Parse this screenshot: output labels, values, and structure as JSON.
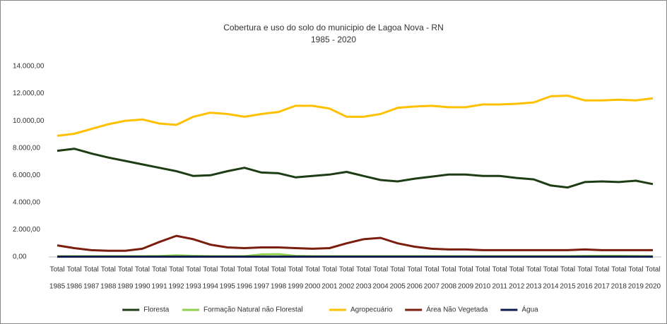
{
  "chart_data": {
    "type": "line",
    "title": "Cobertura e uso do solo do municipio de Lagoa Nova - RN",
    "subtitle": "1985 - 2020",
    "categories": [
      [
        "Total",
        "1985"
      ],
      [
        "Total",
        "1986"
      ],
      [
        "Total",
        "1987"
      ],
      [
        "Total",
        "1988"
      ],
      [
        "Total",
        "1989"
      ],
      [
        "Total",
        "1990"
      ],
      [
        "Total",
        "1991"
      ],
      [
        "Total",
        "1992"
      ],
      [
        "Total",
        "1993"
      ],
      [
        "Total",
        "1994"
      ],
      [
        "Total",
        "1995"
      ],
      [
        "Total",
        "1996"
      ],
      [
        "Total",
        "1997"
      ],
      [
        "Total",
        "1998"
      ],
      [
        "Total",
        "1999"
      ],
      [
        "Total",
        "2000"
      ],
      [
        "Total",
        "2001"
      ],
      [
        "Total",
        "2002"
      ],
      [
        "Total",
        "2003"
      ],
      [
        "Total",
        "2004"
      ],
      [
        "Total",
        "2005"
      ],
      [
        "Total",
        "2006"
      ],
      [
        "Total",
        "2007"
      ],
      [
        "Total",
        "2008"
      ],
      [
        "Total",
        "2009"
      ],
      [
        "Total",
        "2010"
      ],
      [
        "Total",
        "2011"
      ],
      [
        "Total",
        "2012"
      ],
      [
        "Total",
        "2013"
      ],
      [
        "Total",
        "2014"
      ],
      [
        "Total",
        "2015"
      ],
      [
        "Total",
        "2016"
      ],
      [
        "Total",
        "2017"
      ],
      [
        "Total",
        "2018"
      ],
      [
        "Total",
        "2019"
      ],
      [
        "Total",
        "2020"
      ]
    ],
    "series": [
      {
        "name": "Floresta",
        "color": "#1e3d14",
        "values": [
          7800,
          7950,
          7600,
          7300,
          7050,
          6800,
          6550,
          6300,
          5950,
          6000,
          6300,
          6550,
          6200,
          6150,
          5850,
          5950,
          6050,
          6250,
          5950,
          5650,
          5550,
          5750,
          5900,
          6050,
          6050,
          5950,
          5950,
          5800,
          5700,
          5250,
          5100,
          5500,
          5550,
          5500,
          5600,
          5350
        ]
      },
      {
        "name": "Formação Natural não Florestal",
        "color": "#8fd14f",
        "values": [
          50,
          50,
          50,
          50,
          50,
          50,
          60,
          120,
          80,
          50,
          50,
          50,
          180,
          200,
          80,
          50,
          50,
          50,
          50,
          50,
          50,
          50,
          50,
          50,
          50,
          50,
          50,
          50,
          50,
          50,
          50,
          80,
          80,
          80,
          60,
          50
        ]
      },
      {
        "name": "Agropecuário",
        "color": "#ffc000",
        "values": [
          8900,
          9050,
          9400,
          9750,
          10000,
          10100,
          9800,
          9700,
          10300,
          10600,
          10500,
          10300,
          10500,
          10650,
          11100,
          11100,
          10900,
          10300,
          10300,
          10500,
          10950,
          11050,
          11100,
          11000,
          11000,
          11200,
          11200,
          11250,
          11350,
          11800,
          11850,
          11500,
          11500,
          11550,
          11500,
          11650
        ]
      },
      {
        "name": "Área Não Vegetada",
        "color": "#7b1e0e",
        "values": [
          850,
          650,
          500,
          450,
          450,
          600,
          1100,
          1550,
          1300,
          900,
          700,
          650,
          700,
          700,
          650,
          600,
          650,
          1000,
          1300,
          1400,
          1000,
          750,
          600,
          550,
          550,
          500,
          500,
          500,
          500,
          500,
          500,
          550,
          500,
          500,
          500,
          500
        ]
      },
      {
        "name": "Água",
        "color": "#0d1b4c",
        "values": [
          20,
          20,
          20,
          20,
          20,
          20,
          20,
          20,
          20,
          20,
          20,
          20,
          20,
          20,
          20,
          20,
          20,
          20,
          20,
          20,
          20,
          20,
          20,
          20,
          20,
          20,
          20,
          20,
          20,
          20,
          20,
          20,
          20,
          20,
          20,
          20
        ]
      }
    ],
    "ylim": [
      0,
      14000
    ],
    "yticks": [
      {
        "value": 0,
        "label": "0,00"
      },
      {
        "value": 2000,
        "label": "2.000,00"
      },
      {
        "value": 4000,
        "label": "4.000,00"
      },
      {
        "value": 6000,
        "label": "6.000,00"
      },
      {
        "value": 8000,
        "label": "8.000,00"
      },
      {
        "value": 10000,
        "label": "10.000,00"
      },
      {
        "value": 12000,
        "label": "12.000,00"
      },
      {
        "value": 14000,
        "label": "14.000,00"
      }
    ],
    "grid": false,
    "legend": "bottom"
  }
}
